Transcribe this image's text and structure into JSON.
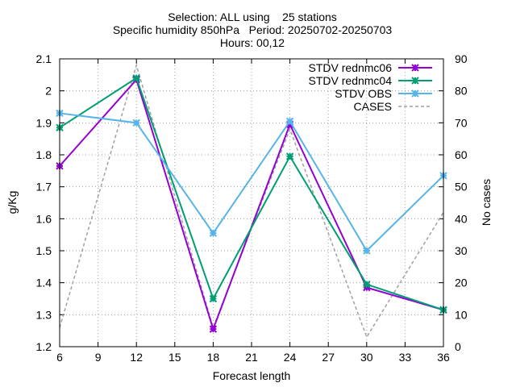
{
  "chart_data": {
    "type": "line",
    "title": [
      "Selection: ALL using    25 stations",
      "Specific humidity 850hPa   Period: 20250702-20250703",
      "Hours: 00,12"
    ],
    "xlabel": "Forecast length",
    "ylabel": "g/Kg",
    "y2label": "No cases",
    "xlim": [
      6,
      36
    ],
    "ylim": [
      1.2,
      2.1
    ],
    "y2lim": [
      0,
      90
    ],
    "xticks": [
      6,
      9,
      12,
      15,
      18,
      21,
      24,
      27,
      30,
      33,
      36
    ],
    "yticks": [
      1.2,
      1.3,
      1.4,
      1.5,
      1.6,
      1.7,
      1.8,
      1.9,
      2.0,
      2.1
    ],
    "ytick_labels": [
      "1.2",
      "1.3",
      "1.4",
      "1.5",
      "1.6",
      "1.7",
      "1.8",
      "1.9",
      "2",
      "2.1"
    ],
    "y2ticks": [
      0,
      10,
      20,
      30,
      40,
      50,
      60,
      70,
      80,
      90
    ],
    "grid": true,
    "legend_position": "top-right",
    "x": [
      6,
      12,
      18,
      24,
      30,
      36
    ],
    "series": [
      {
        "name": "STDV rednmc06",
        "axis": "y",
        "color": "#9400d3",
        "style": "solid",
        "marker": "x",
        "values": [
          1.765,
          2.035,
          1.255,
          1.895,
          1.385,
          1.315
        ]
      },
      {
        "name": "STDV rednmc04",
        "axis": "y",
        "color": "#009e73",
        "style": "solid",
        "marker": "x",
        "values": [
          1.885,
          2.04,
          1.35,
          1.795,
          1.395,
          1.315
        ]
      },
      {
        "name": "STDV OBS",
        "axis": "y",
        "color": "#56b4e9",
        "style": "solid",
        "marker": "x",
        "values": [
          1.93,
          1.9,
          1.555,
          1.905,
          1.5,
          1.735
        ]
      },
      {
        "name": "CASES",
        "axis": "y2",
        "color": "#a0a0a0",
        "style": "dashed",
        "marker": "none",
        "values": [
          6,
          88,
          6,
          68,
          3,
          42
        ]
      }
    ]
  }
}
